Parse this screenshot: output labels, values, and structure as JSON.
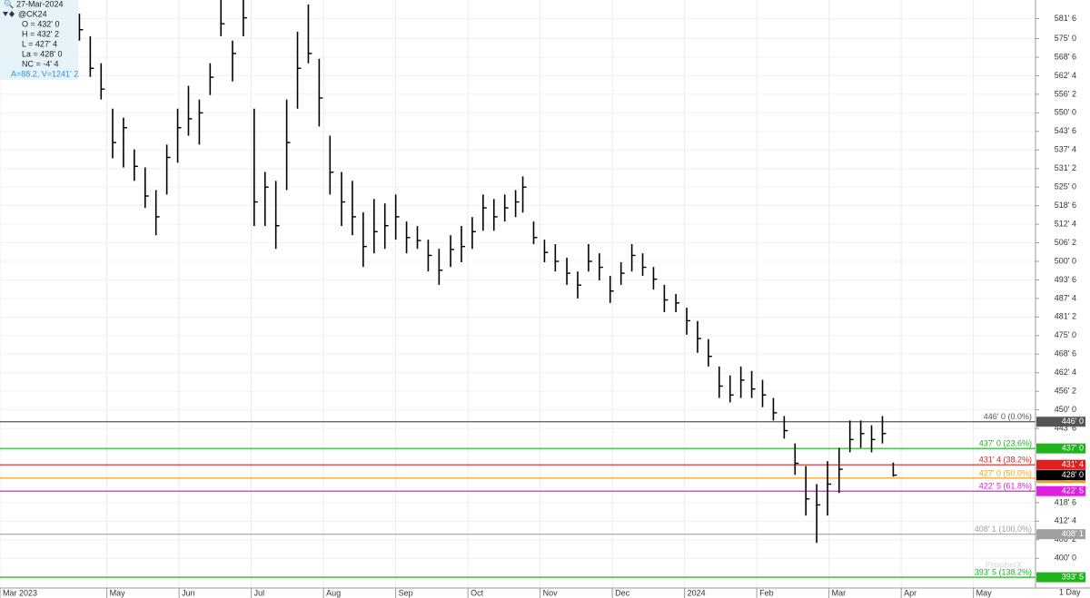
{
  "chart_data": {
    "type": "ohlc",
    "header": {
      "date": "27-Mar-2024",
      "symbol": "@CK24",
      "open": "O = 432' 0",
      "high": "H = 432' 2",
      "low": "L = 427' 4",
      "last": "La = 428' 0",
      "net_change": "NC = -4' 4",
      "volume": "A=88.2, V=1241' 2"
    },
    "color": "#000000",
    "bars": {
      "x": [
        1.62,
        1.77,
        1.92,
        2.08,
        2.23,
        2.38,
        2.53,
        2.68,
        2.83,
        2.98,
        3.13,
        3.28,
        3.43,
        3.58,
        3.74,
        3.89,
        4.04,
        4.19,
        4.34,
        4.49,
        4.64,
        4.79,
        4.94,
        5.09,
        5.25,
        5.4,
        5.55,
        5.7,
        5.85,
        6.0,
        6.15,
        6.3,
        6.45,
        6.6,
        6.76,
        6.91,
        7.06,
        7.21,
        7.36,
        7.51,
        7.66,
        7.76,
        7.91,
        8.06,
        8.21,
        8.37,
        8.52,
        8.67,
        8.82,
        8.97,
        9.12,
        9.27,
        9.42,
        9.57,
        9.72,
        9.88,
        10.03,
        10.18,
        10.33,
        10.48,
        10.63,
        10.78,
        10.93,
        11.08,
        11.23,
        11.38,
        11.53,
        11.68,
        11.83,
        11.98,
        12.14,
        12.29,
        12.44,
        12.59,
        12.74,
        12.89
      ],
      "high": [
        583.4,
        575.8,
        566.7,
        551.4,
        548.4,
        537.7,
        531.6,
        524.0,
        539.3,
        551.4,
        559.1,
        554.5,
        566.7,
        588.0,
        574.3,
        588.0,
        551.4,
        530.1,
        527.1,
        554.5,
        577.3,
        586.5,
        568.2,
        542.3,
        530.1,
        527.1,
        516.5,
        521.0,
        519.5,
        522.5,
        513.4,
        511.9,
        507.3,
        504.2,
        508.8,
        511.9,
        514.9,
        522.5,
        521.0,
        522.5,
        524.0,
        528.6,
        513.4,
        507.3,
        505.8,
        501.2,
        496.6,
        505.8,
        502.7,
        495.1,
        499.7,
        505.8,
        502.7,
        498.1,
        492.1,
        489.0,
        484.4,
        479.9,
        473.8,
        464.6,
        461.6,
        464.6,
        463.1,
        460.1,
        454.0,
        447.9,
        438.7,
        431.1,
        425.0,
        432.7,
        437.2,
        446.4,
        446.4,
        444.8,
        447.9,
        432.25
      ],
      "low": [
        574.3,
        562.1,
        554.5,
        534.7,
        531.6,
        527.1,
        518.0,
        508.8,
        522.5,
        533.2,
        542.3,
        539.3,
        556.0,
        575.8,
        560.6,
        575.8,
        511.9,
        511.9,
        504.2,
        524.0,
        551.4,
        566.7,
        545.4,
        522.5,
        511.9,
        508.8,
        498.1,
        502.7,
        504.2,
        507.3,
        502.7,
        504.2,
        496.6,
        492.1,
        498.1,
        499.7,
        504.2,
        510.3,
        510.3,
        513.4,
        514.9,
        516.4,
        505.8,
        499.7,
        496.6,
        492.1,
        487.5,
        496.6,
        493.6,
        486.0,
        492.1,
        496.6,
        495.1,
        490.5,
        482.9,
        482.9,
        475.3,
        469.2,
        464.6,
        454.0,
        452.5,
        454.0,
        454.0,
        450.9,
        446.4,
        440.3,
        428.1,
        414.4,
        405.2,
        414.4,
        422.0,
        435.7,
        437.2,
        435.7,
        438.7,
        427.5
      ],
      "close": [
        578,
        565,
        558,
        540,
        545,
        532,
        522,
        515,
        535,
        545,
        548,
        550,
        562,
        580,
        570,
        582,
        520,
        525,
        512,
        540,
        565,
        570,
        555,
        530,
        520,
        515,
        505,
        510,
        512,
        515,
        508,
        507,
        502,
        497,
        504,
        505,
        510,
        518,
        515,
        518,
        520,
        525,
        508,
        503,
        500,
        496,
        492,
        500,
        498,
        490,
        496,
        502,
        498,
        494,
        487,
        486,
        480,
        474,
        468,
        458,
        455,
        460,
        457,
        455,
        449,
        443,
        432,
        420,
        418,
        425,
        430,
        440,
        442,
        440,
        442,
        428
      ]
    },
    "xlim": [
      0.52,
      14.86
    ],
    "xticks": [
      {
        "value": 0.52,
        "label": "Mar 2023"
      },
      {
        "value": 2,
        "label": "May"
      },
      {
        "value": 3,
        "label": "Jun"
      },
      {
        "value": 4,
        "label": "Jul"
      },
      {
        "value": 5,
        "label": "Aug"
      },
      {
        "value": 6,
        "label": "Sep"
      },
      {
        "value": 7,
        "label": "Oct"
      },
      {
        "value": 8,
        "label": "Nov"
      },
      {
        "value": 9,
        "label": "Dec"
      },
      {
        "value": 10,
        "label": "2024"
      },
      {
        "value": 11,
        "label": "Feb"
      },
      {
        "value": 12,
        "label": "Mar"
      },
      {
        "value": 13,
        "label": "Apr"
      },
      {
        "value": 14,
        "label": "May"
      }
    ],
    "ylim": [
      390,
      588
    ],
    "yticks": [
      {
        "value": 581.75,
        "label": "581' 6"
      },
      {
        "value": 575,
        "label": "575' 0"
      },
      {
        "value": 568.75,
        "label": "568' 6"
      },
      {
        "value": 562.5,
        "label": "562' 4"
      },
      {
        "value": 556.25,
        "label": "556' 2"
      },
      {
        "value": 550,
        "label": "550' 0"
      },
      {
        "value": 543.75,
        "label": "543' 6"
      },
      {
        "value": 537.5,
        "label": "537' 4"
      },
      {
        "value": 531.25,
        "label": "531' 2"
      },
      {
        "value": 525,
        "label": "525' 0"
      },
      {
        "value": 518.75,
        "label": "518' 6"
      },
      {
        "value": 512.5,
        "label": "512' 4"
      },
      {
        "value": 506.25,
        "label": "506' 2"
      },
      {
        "value": 500,
        "label": "500' 0"
      },
      {
        "value": 493.75,
        "label": "493' 6"
      },
      {
        "value": 487.5,
        "label": "487' 4"
      },
      {
        "value": 481.25,
        "label": "481' 2"
      },
      {
        "value": 475,
        "label": "475' 0"
      },
      {
        "value": 468.75,
        "label": "468' 6"
      },
      {
        "value": 462.5,
        "label": "462' 4"
      },
      {
        "value": 456.25,
        "label": "456' 2"
      },
      {
        "value": 450,
        "label": "450' 0"
      },
      {
        "value": 443.75,
        "label": "443' 6"
      },
      {
        "value": 418.75,
        "label": "418' 6"
      },
      {
        "value": 412.5,
        "label": "412' 4"
      },
      {
        "value": 406.25,
        "label": "406' 2"
      },
      {
        "value": 400,
        "label": "400' 0"
      }
    ],
    "grid": true,
    "fib_levels": [
      {
        "value": 446,
        "label": "446' 0 (0.0%)",
        "tag": "446' 0",
        "color": "#555555"
      },
      {
        "value": 437,
        "label": "437' 0 (23.6%)",
        "tag": "437' 0",
        "color": "#1cb51c"
      },
      {
        "value": 431.5,
        "label": "431' 4 (38.2%)",
        "tag": "431' 4",
        "color": "#e02020"
      },
      {
        "value": 427,
        "label": "427' 0 (50.0%)",
        "tag": "427' 0",
        "color": "#f0a020"
      },
      {
        "value": 422.625,
        "label": "422' 5 (61.8%)",
        "tag": "422' 5",
        "color": "#e020e0"
      },
      {
        "value": 408.125,
        "label": "408' 1 (100.0%)",
        "tag": "408' 1",
        "color": "#a0a0a0"
      },
      {
        "value": 393.625,
        "label": "393' 5 (138.2%)",
        "tag": "393' 5",
        "color": "#1cb51c"
      }
    ],
    "last_price": {
      "value": 428,
      "label": "428' 0"
    },
    "interval": "1 Day",
    "watermark": "ProphetX"
  }
}
